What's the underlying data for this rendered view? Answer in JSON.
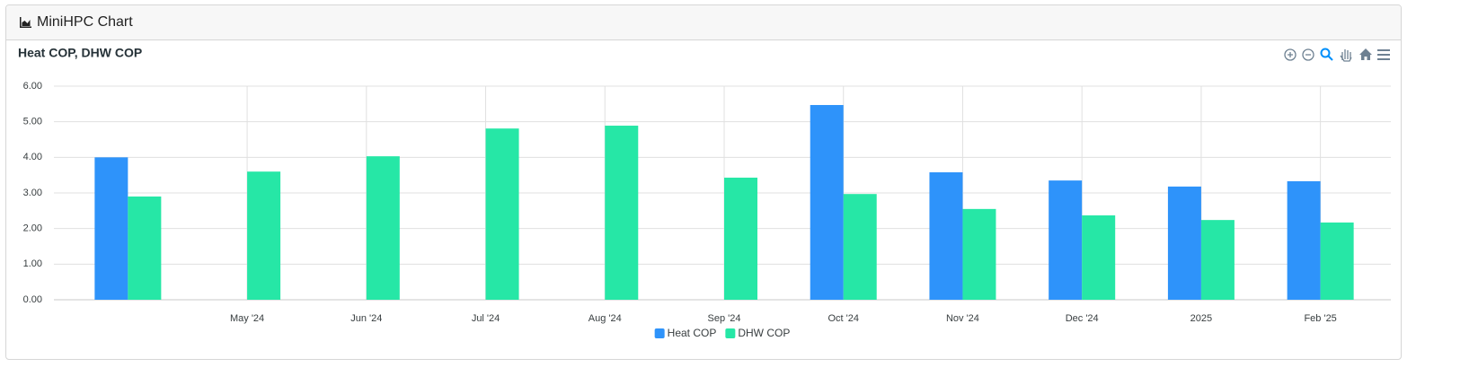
{
  "header": {
    "title": "MiniHPC Chart"
  },
  "chart_data": {
    "type": "bar",
    "title": "Heat COP, DHW COP",
    "categories": [
      null,
      "May '24",
      "Jun '24",
      "Jul '24",
      "Aug '24",
      "Sep '24",
      "Oct '24",
      "Nov '24",
      "Dec '24",
      "2025",
      "Feb '25"
    ],
    "series": [
      {
        "name": "Heat COP",
        "color": "#2e93fa",
        "values": [
          4.0,
          null,
          null,
          null,
          null,
          null,
          5.47,
          3.58,
          3.35,
          3.18,
          3.33
        ]
      },
      {
        "name": "DHW COP",
        "color": "#26e7a6",
        "values": [
          2.9,
          3.6,
          4.03,
          4.81,
          4.89,
          3.43,
          2.97,
          2.55,
          2.37,
          2.24,
          2.17
        ]
      }
    ],
    "ylim": [
      0,
      6
    ],
    "yticks": [
      {
        "value": 0,
        "label": "0.00"
      },
      {
        "value": 1,
        "label": "1.00"
      },
      {
        "value": 2,
        "label": "2.00"
      },
      {
        "value": 3,
        "label": "3.00"
      },
      {
        "value": 4,
        "label": "4.00"
      },
      {
        "value": 5,
        "label": "5.00"
      },
      {
        "value": 6,
        "label": "6.00"
      }
    ],
    "grid": true,
    "legend": "bottom"
  }
}
